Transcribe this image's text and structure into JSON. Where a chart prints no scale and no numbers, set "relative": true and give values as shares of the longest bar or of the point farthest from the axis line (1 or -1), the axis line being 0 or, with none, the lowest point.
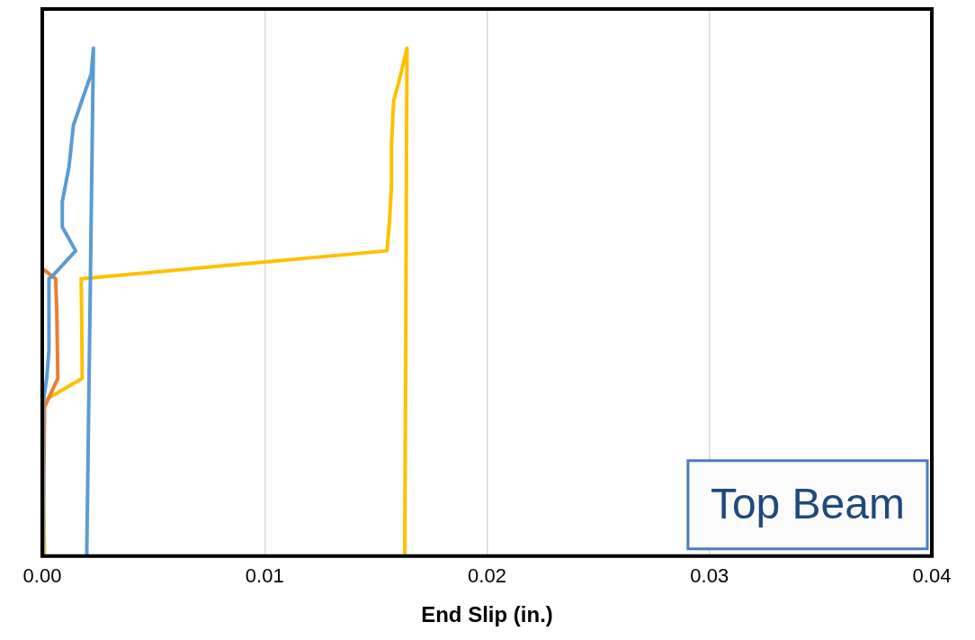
{
  "chart_data": {
    "type": "line",
    "xlabel": "End Slip (in.)",
    "relative": true,
    "xlim": [
      0,
      0.04
    ],
    "xticks": [
      {
        "value": 0,
        "label": "0.00"
      },
      0.01,
      0.02,
      0.03,
      0.04
    ],
    "grid": "x",
    "legend": false,
    "tick_labels": "x",
    "marker": "none",
    "line_style": "solid",
    "annotations": [
      "Top Beam"
    ],
    "series": [
      {
        "color": "#5b9bd5",
        "x": [
          0,
          4e-05,
          0.0002,
          0.0003,
          0.0003,
          0.00045,
          0.0015,
          0.0009,
          0.0009,
          0.0012,
          0.0014,
          0.0018,
          0.0022,
          0.0023,
          0.002
        ],
        "values": [
          0,
          0.304,
          0.35,
          0.405,
          0.546,
          0.551,
          0.601,
          0.648,
          0.698,
          0.766,
          0.848,
          0.899,
          0.949,
          1,
          0
        ]
      },
      {
        "color": "#ed7d31",
        "x": [
          4e-05,
          0.0001,
          0.0007,
          0.00065,
          0.0006,
          0
        ],
        "values": [
          0,
          0.293,
          0.35,
          0.487,
          0.546,
          0.566
        ]
      },
      {
        "color": "#ffc000",
        "x": [
          0.0001,
          0,
          0.0018,
          0.00175,
          0.0155,
          0.0156,
          0.0157,
          0.0157,
          0.0158,
          0.0161,
          0.0164,
          0.0163
        ],
        "values": [
          0,
          0.304,
          0.35,
          0.546,
          0.601,
          0.652,
          0.725,
          0.808,
          0.896,
          0.945,
          1,
          0
        ]
      }
    ]
  }
}
